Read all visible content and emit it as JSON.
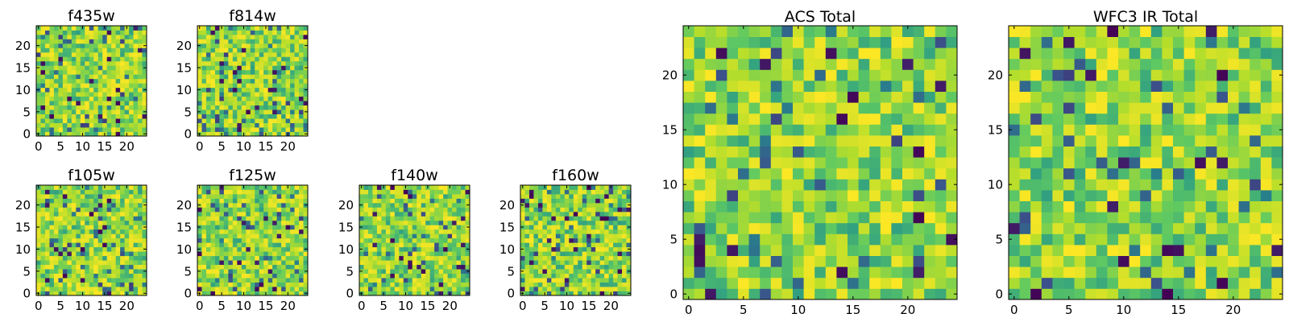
{
  "chart_data": [
    {
      "type": "heatmap",
      "title": "f435w",
      "grid_size": [
        25,
        25
      ],
      "xlim": [
        0,
        24
      ],
      "ylim": [
        0,
        24
      ],
      "xticks": [
        0,
        5,
        10,
        15,
        20
      ],
      "yticks": [
        0,
        5,
        10,
        15,
        20
      ],
      "seed": 11
    },
    {
      "type": "heatmap",
      "title": "f814w",
      "grid_size": [
        25,
        25
      ],
      "xlim": [
        0,
        24
      ],
      "ylim": [
        0,
        24
      ],
      "xticks": [
        0,
        5,
        10,
        15,
        20
      ],
      "yticks": [
        0,
        5,
        10,
        15,
        20
      ],
      "seed": 23
    },
    {
      "type": "heatmap",
      "title": "f105w",
      "grid_size": [
        25,
        25
      ],
      "xlim": [
        0,
        24
      ],
      "ylim": [
        0,
        24
      ],
      "xticks": [
        0,
        5,
        10,
        15,
        20
      ],
      "yticks": [
        0,
        5,
        10,
        15,
        20
      ],
      "seed": 37
    },
    {
      "type": "heatmap",
      "title": "f125w",
      "grid_size": [
        25,
        25
      ],
      "xlim": [
        0,
        24
      ],
      "ylim": [
        0,
        24
      ],
      "xticks": [
        0,
        5,
        10,
        15,
        20
      ],
      "yticks": [
        0,
        5,
        10,
        15,
        20
      ],
      "seed": 41
    },
    {
      "type": "heatmap",
      "title": "f140w",
      "grid_size": [
        25,
        25
      ],
      "xlim": [
        0,
        24
      ],
      "ylim": [
        0,
        24
      ],
      "xticks": [
        0,
        5,
        10,
        15,
        20
      ],
      "yticks": [
        0,
        5,
        10,
        15,
        20
      ],
      "seed": 53
    },
    {
      "type": "heatmap",
      "title": "f160w",
      "grid_size": [
        25,
        25
      ],
      "xlim": [
        0,
        24
      ],
      "ylim": [
        0,
        24
      ],
      "xticks": [
        0,
        5,
        10,
        15,
        20
      ],
      "yticks": [
        0,
        5,
        10,
        15,
        20
      ],
      "seed": 67
    },
    {
      "type": "heatmap",
      "title": "ACS Total",
      "grid_size": [
        25,
        25
      ],
      "xlim": [
        0,
        24
      ],
      "ylim": [
        0,
        24
      ],
      "xticks": [
        0,
        5,
        10,
        15,
        20
      ],
      "yticks": [
        0,
        5,
        10,
        15,
        20
      ],
      "seed": 79
    },
    {
      "type": "heatmap",
      "title": "WFC3 IR Total",
      "grid_size": [
        25,
        25
      ],
      "xlim": [
        0,
        24
      ],
      "ylim": [
        0,
        24
      ],
      "xticks": [
        0,
        5,
        10,
        15,
        20
      ],
      "yticks": [
        0,
        5,
        10,
        15,
        20
      ],
      "seed": 97
    }
  ],
  "colormap": [
    "#440154",
    "#3b528b",
    "#21918c",
    "#5ec962",
    "#b5de2b",
    "#fde725"
  ]
}
